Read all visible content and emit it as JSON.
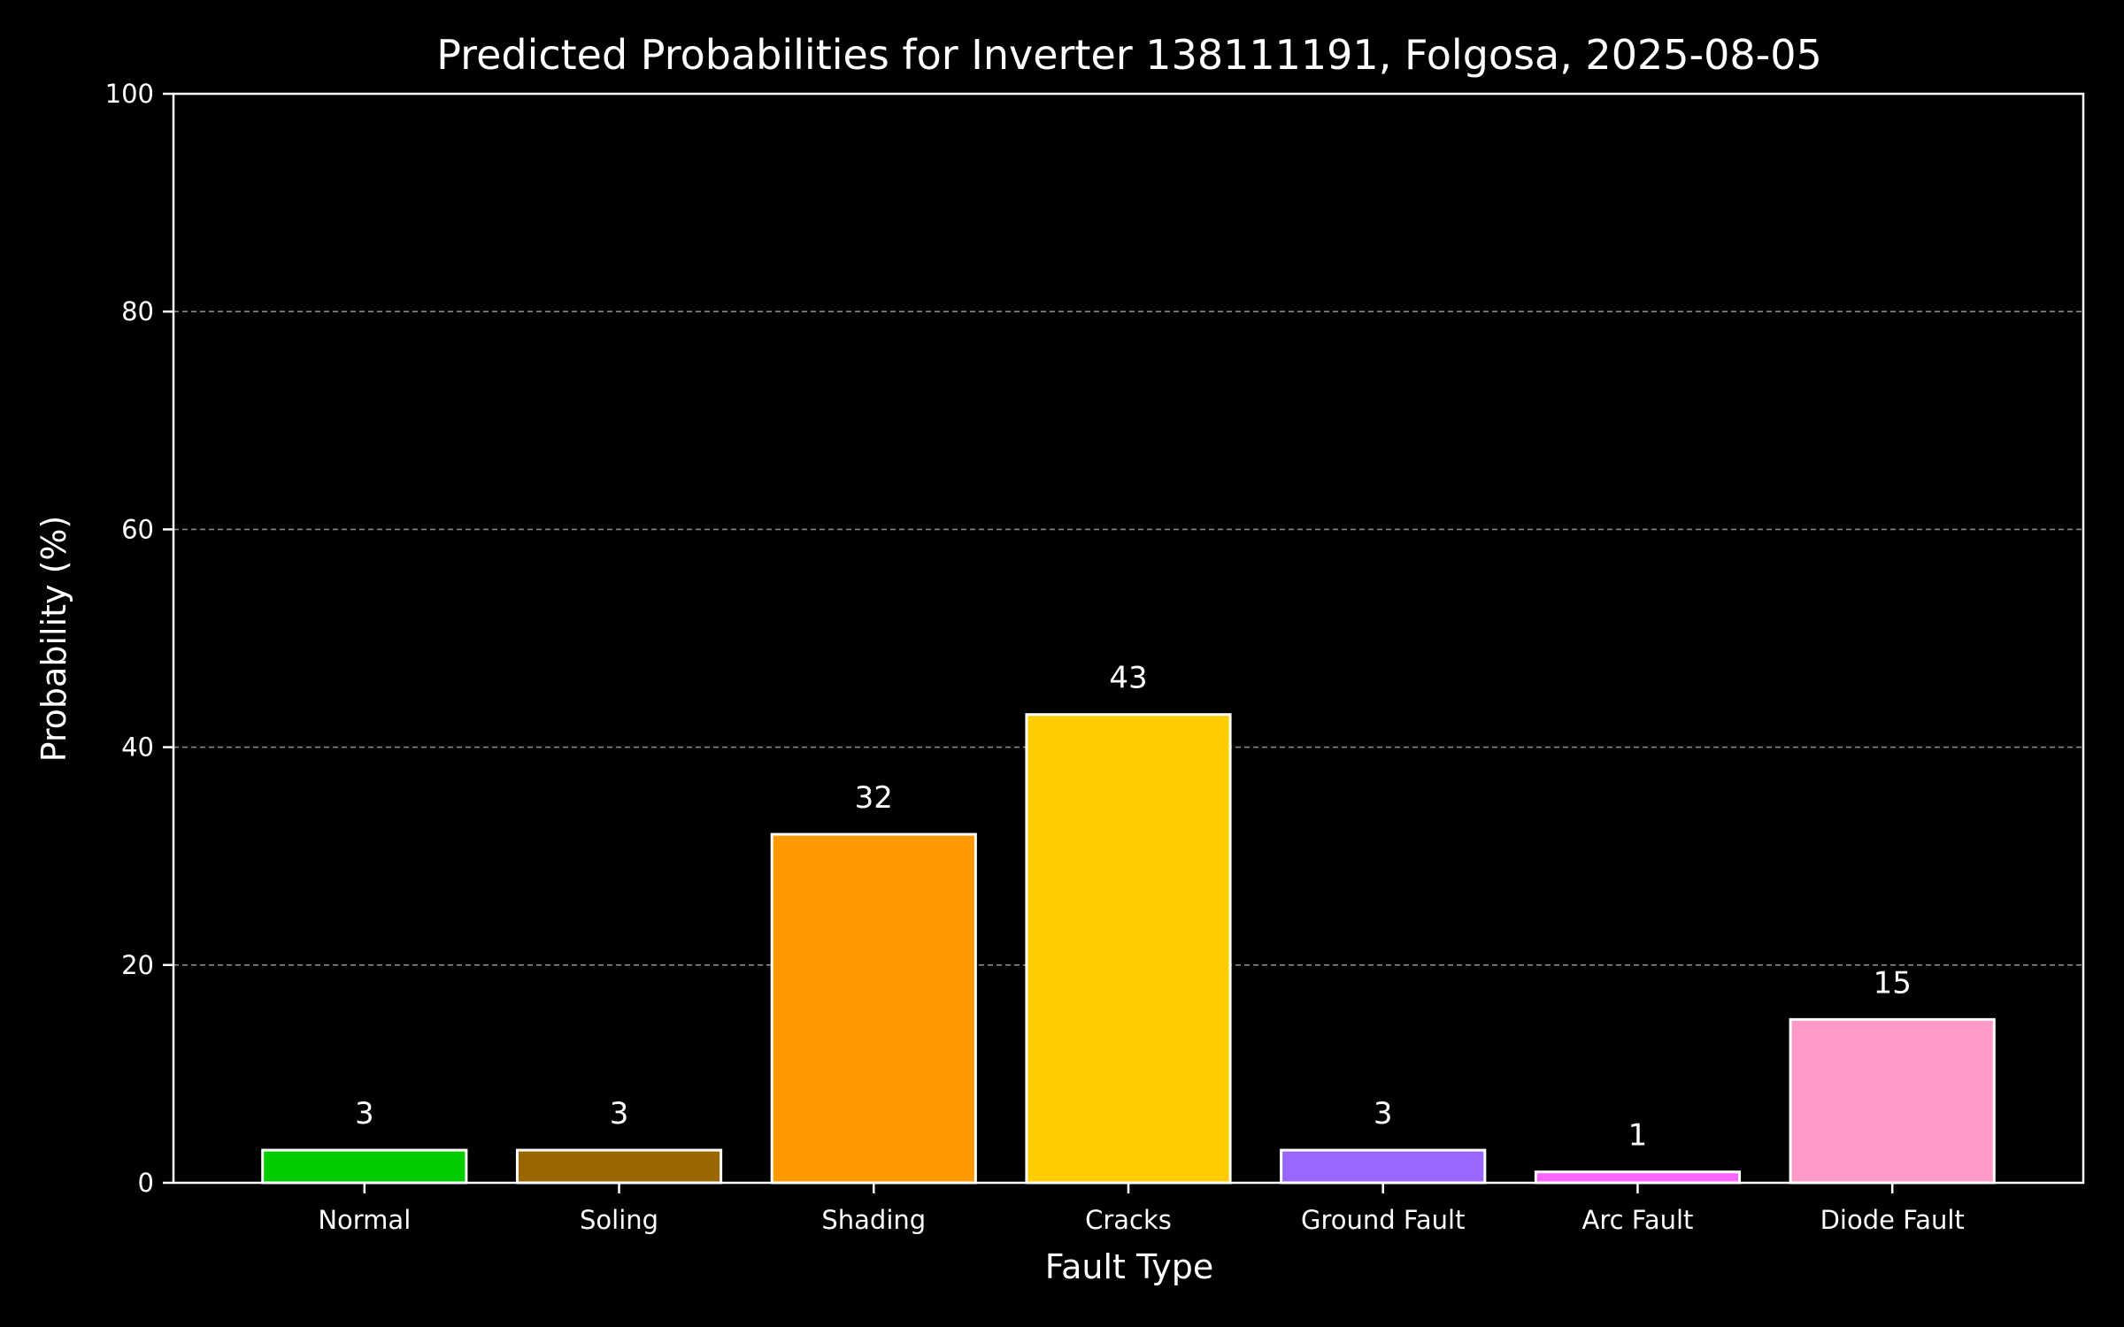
{
  "chart_data": {
    "type": "bar",
    "title": "Predicted Probabilities for Inverter 138111191, Folgosa, 2025-08-05",
    "xlabel": "Fault Type",
    "ylabel": "Probability (%)",
    "ylim": [
      0,
      100
    ],
    "yticks": [
      0,
      20,
      40,
      60,
      80,
      100
    ],
    "grid": "horizontal-dashed",
    "categories": [
      "Normal",
      "Soling",
      "Shading",
      "Cracks",
      "Ground Fault",
      "Arc Fault",
      "Diode Fault"
    ],
    "values": [
      3,
      3,
      32,
      43,
      3,
      1,
      15
    ],
    "data_labels": [
      "3",
      "3",
      "32",
      "43",
      "3",
      "1",
      "15"
    ],
    "colors": [
      "#00cc00",
      "#996600",
      "#ff9900",
      "#ffcc00",
      "#9966ff",
      "#ff66ff",
      "#ff99c8"
    ],
    "background": "#000000",
    "foreground": "#ffffff"
  }
}
